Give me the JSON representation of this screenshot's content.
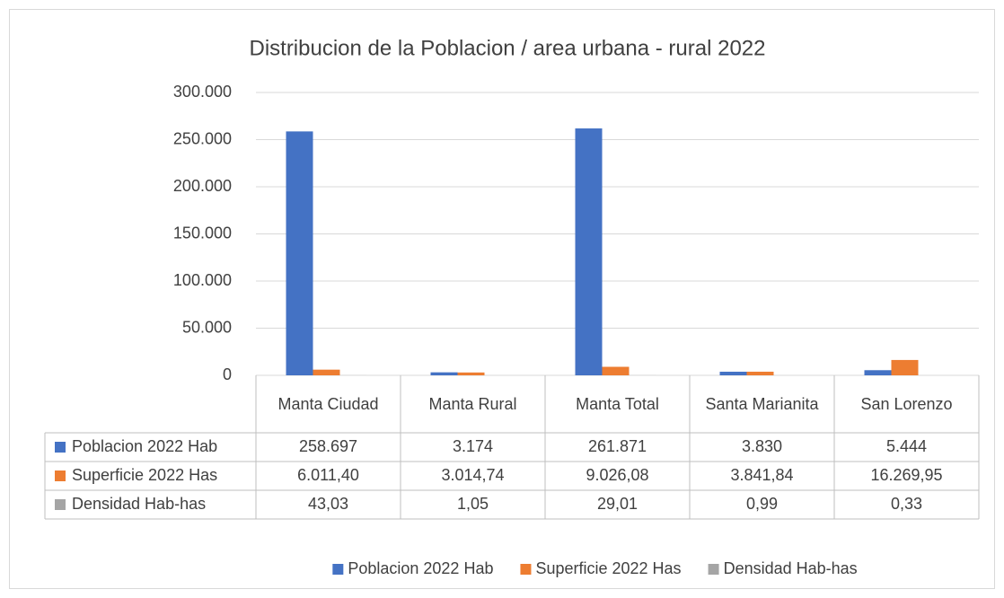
{
  "chart_data": {
    "type": "bar",
    "title": "Distribucion de la Poblacion / area urbana - rural 2022",
    "categories": [
      "Manta Ciudad",
      "Manta Rural",
      "Manta Total",
      "Santa Marianita",
      "San Lorenzo"
    ],
    "series": [
      {
        "name": "Poblacion 2022 Hab",
        "color": "#4472c4",
        "values": [
          258697,
          3174,
          261871,
          3830,
          5444
        ],
        "value_labels": [
          "258.697",
          "3.174",
          "261.871",
          "3.830",
          "5.444"
        ]
      },
      {
        "name": "Superficie 2022 Has",
        "color": "#ed7d31",
        "values": [
          6011.4,
          3014.74,
          9026.08,
          3841.84,
          16269.95
        ],
        "value_labels": [
          "6.011,40",
          "3.014,74",
          "9.026,08",
          "3.841,84",
          "16.269,95"
        ]
      },
      {
        "name": "Densidad Hab-has",
        "color": "#a5a5a5",
        "values": [
          43.03,
          1.05,
          29.01,
          0.99,
          0.33
        ],
        "value_labels": [
          "43,03",
          "1,05",
          "29,01",
          "0,99",
          "0,33"
        ]
      }
    ],
    "ylim": [
      0,
      300000
    ],
    "yticks": [
      0,
      {
        "value": 50000,
        "label": "50.000"
      },
      {
        "value": 100000,
        "label": "100.000"
      },
      {
        "value": 150000,
        "label": "150.000"
      },
      {
        "value": 200000,
        "label": "200.000"
      },
      {
        "value": 250000,
        "label": "250.000"
      },
      {
        "value": 300000,
        "label": "300.000"
      }
    ],
    "grid": true,
    "legend": "bottom"
  }
}
